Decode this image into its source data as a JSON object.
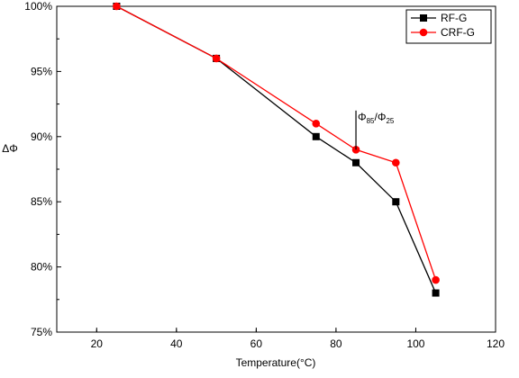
{
  "chart_data": {
    "type": "line",
    "title": "",
    "xlabel": "Temperature(°C)",
    "ylabel": "ΔΦ",
    "xlim": [
      10,
      120
    ],
    "ylim": [
      75,
      100
    ],
    "xticks": [
      20,
      40,
      60,
      80,
      100,
      120
    ],
    "yticks": [
      75,
      80,
      85,
      90,
      95,
      100
    ],
    "ytick_labels": [
      "75%",
      "80%",
      "85%",
      "90%",
      "95%",
      "100%"
    ],
    "grid": false,
    "legend_position": "top-right",
    "series": [
      {
        "name": "RF-G",
        "color": "#000000",
        "marker": "square",
        "x": [
          25,
          50,
          75,
          85,
          95,
          105
        ],
        "y": [
          100,
          96,
          90,
          88,
          85,
          78
        ]
      },
      {
        "name": "CRF-G",
        "color": "#ff0000",
        "marker": "circle",
        "x": [
          25,
          50,
          75,
          85,
          95,
          105
        ],
        "y": [
          100,
          96,
          91,
          89,
          88,
          79
        ]
      }
    ],
    "annotation": {
      "main": "Φ",
      "sub1": "85",
      "mid": "/Φ",
      "sub2": "25",
      "x_line": 85,
      "y_from": 89,
      "y_to": 92
    }
  }
}
